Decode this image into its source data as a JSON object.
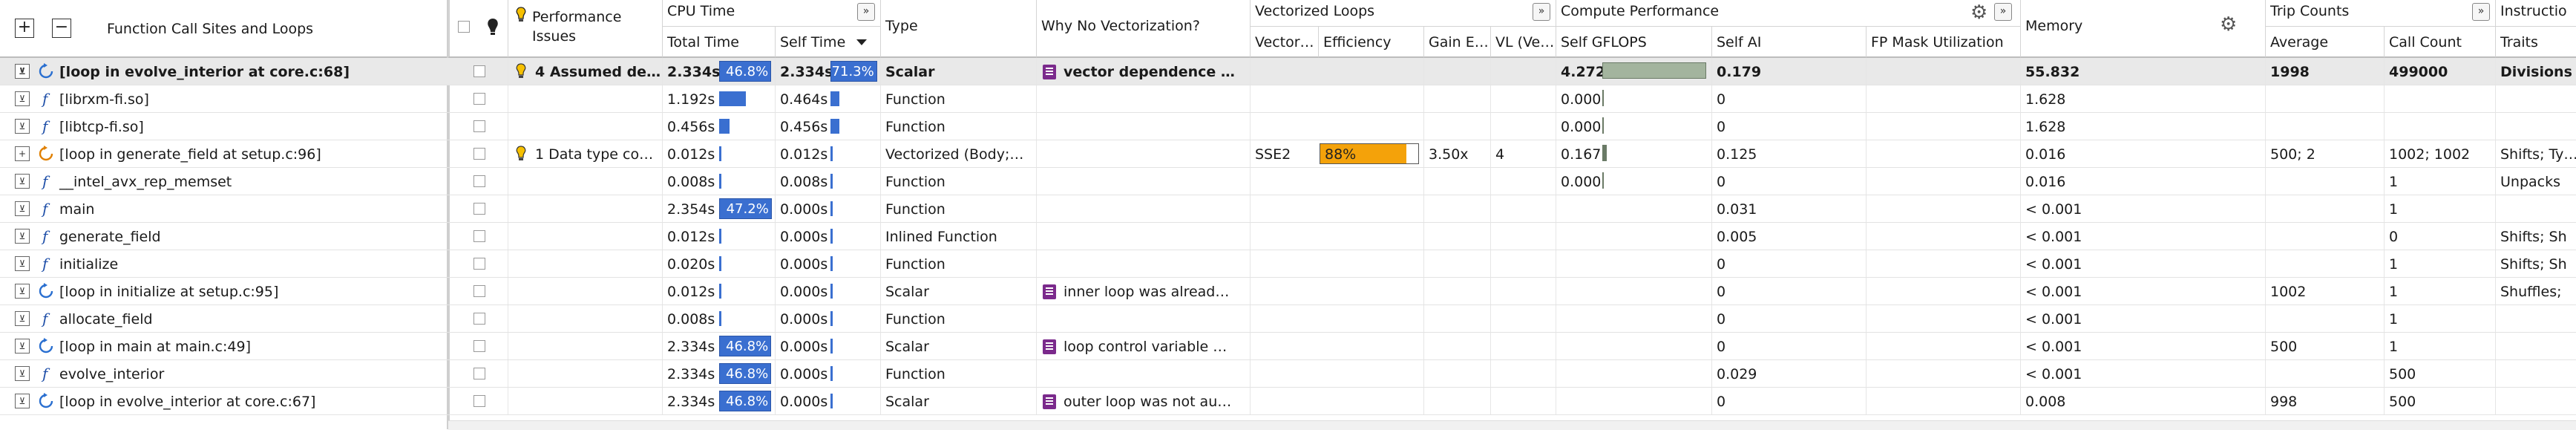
{
  "toolbar": {
    "expand_all": "+",
    "collapse_all": "−"
  },
  "headers": {
    "function_call_sites": "Function Call Sites and Loops",
    "performance_issues": "Performance Issues",
    "cpu_time": "CPU Time",
    "total_time": "Total Time",
    "self_time": "Self Time",
    "type": "Type",
    "why_no_vectorization": "Why No Vectorization?",
    "vectorized_loops": "Vectorized Loops",
    "vector_isa": "Vector…",
    "efficiency": "Efficiency",
    "gain_estimate": "Gain E…",
    "vl": "VL (Ve…",
    "compute_performance": "Compute Performance",
    "self_gflops": "Self GFLOPS",
    "self_ai": "Self AI",
    "fp_mask": "FP Mask Utilization",
    "memory": "Memory",
    "trip_counts": "Trip Counts",
    "average": "Average",
    "call_count": "Call Count",
    "instruction_set": "Instructio",
    "traits": "Traits"
  },
  "rows": [
    {
      "kind": "loop",
      "expander": "⊻",
      "name": "[loop in evolve_interior at core.c:68]",
      "bulb": true,
      "issues": "4 Assumed de…",
      "total": "2.334s",
      "total_pct": "46.8%",
      "total_bar": 0.468,
      "self": "2.334s",
      "self_pct": "71.3%",
      "self_bar": 0.713,
      "type": "Scalar",
      "why": "vector dependence …",
      "why_icon": true,
      "isa": "",
      "eff": "",
      "eff_val": null,
      "gain": "",
      "vl": "",
      "gflops": "4.272",
      "gflops_bar": 1.0,
      "ai": "0.179",
      "fpmask": "",
      "memory": "55.832",
      "avg": "1998",
      "calls": "499000",
      "traits": "Divisions"
    },
    {
      "kind": "func",
      "expander": "⊻",
      "name": "[librxm-fi.so]",
      "bulb": false,
      "issues": "",
      "total": "1.192s",
      "total_pct": "",
      "total_bar": 0.239,
      "self": "0.464s",
      "self_pct": "",
      "self_bar": 0.142,
      "type": "Function",
      "why": "",
      "why_icon": false,
      "isa": "",
      "eff": "",
      "eff_val": null,
      "gain": "",
      "vl": "",
      "gflops": "0.000",
      "gflops_bar": 0.0,
      "ai": "0",
      "fpmask": "",
      "memory": "1.628",
      "avg": "",
      "calls": "",
      "traits": ""
    },
    {
      "kind": "func",
      "expander": "⊻",
      "name": "[libtcp-fi.so]",
      "bulb": false,
      "issues": "",
      "total": "0.456s",
      "total_pct": "",
      "total_bar": 0.091,
      "self": "0.456s",
      "self_pct": "",
      "self_bar": 0.139,
      "type": "Function",
      "why": "",
      "why_icon": false,
      "isa": "",
      "eff": "",
      "eff_val": null,
      "gain": "",
      "vl": "",
      "gflops": "0.000",
      "gflops_bar": 0.0,
      "ai": "0",
      "fpmask": "",
      "memory": "1.628",
      "avg": "",
      "calls": "",
      "traits": ""
    },
    {
      "kind": "loop-vec",
      "expander": "+",
      "name": "[loop in generate_field at setup.c:96]",
      "bulb": true,
      "issues": "1 Data type co…",
      "total": "0.012s",
      "total_pct": "",
      "total_bar": 0.002,
      "self": "0.012s",
      "self_pct": "",
      "self_bar": 0.004,
      "type": "Vectorized (Body;…",
      "why": "",
      "why_icon": false,
      "isa": "SSE2",
      "eff": "88%",
      "eff_val": 0.88,
      "gain": "3.50x",
      "vl": "4",
      "gflops": "0.167",
      "gflops_bar": 0.04,
      "ai": "0.125",
      "fpmask": "",
      "memory": "0.016",
      "avg": "500; 2",
      "calls": "1002; 1002",
      "traits": "Shifts; Ty…"
    },
    {
      "kind": "func",
      "expander": "⊻",
      "name": "__intel_avx_rep_memset",
      "bulb": false,
      "issues": "",
      "total": "0.008s",
      "total_pct": "",
      "total_bar": 0.002,
      "self": "0.008s",
      "self_pct": "",
      "self_bar": 0.002,
      "type": "Function",
      "why": "",
      "why_icon": false,
      "isa": "",
      "eff": "",
      "eff_val": null,
      "gain": "",
      "vl": "",
      "gflops": "0.000",
      "gflops_bar": 0.0,
      "ai": "0",
      "fpmask": "",
      "memory": "0.016",
      "avg": "",
      "calls": "1",
      "traits": "Unpacks"
    },
    {
      "kind": "func",
      "expander": "⊻",
      "name": "main",
      "bulb": false,
      "issues": "",
      "total": "2.354s",
      "total_pct": "47.2%",
      "total_bar": 0.472,
      "self": "0.000s",
      "self_pct": "",
      "self_bar": 0.0,
      "type": "Function",
      "why": "",
      "why_icon": false,
      "isa": "",
      "eff": "",
      "eff_val": null,
      "gain": "",
      "vl": "",
      "gflops": "",
      "gflops_bar": null,
      "ai": "0.031",
      "fpmask": "",
      "memory": "< 0.001",
      "avg": "",
      "calls": "1",
      "traits": ""
    },
    {
      "kind": "func",
      "expander": "⊻",
      "name": "generate_field",
      "bulb": false,
      "issues": "",
      "total": "0.012s",
      "total_pct": "",
      "total_bar": 0.002,
      "self": "0.000s",
      "self_pct": "",
      "self_bar": 0.0,
      "type": "Inlined Function",
      "why": "",
      "why_icon": false,
      "isa": "",
      "eff": "",
      "eff_val": null,
      "gain": "",
      "vl": "",
      "gflops": "",
      "gflops_bar": null,
      "ai": "0.005",
      "fpmask": "",
      "memory": "< 0.001",
      "avg": "",
      "calls": "0",
      "traits": "Shifts; Sh"
    },
    {
      "kind": "func",
      "expander": "⊻",
      "name": "initialize",
      "bulb": false,
      "issues": "",
      "total": "0.020s",
      "total_pct": "",
      "total_bar": 0.004,
      "self": "0.000s",
      "self_pct": "",
      "self_bar": 0.0,
      "type": "Function",
      "why": "",
      "why_icon": false,
      "isa": "",
      "eff": "",
      "eff_val": null,
      "gain": "",
      "vl": "",
      "gflops": "",
      "gflops_bar": null,
      "ai": "0",
      "fpmask": "",
      "memory": "< 0.001",
      "avg": "",
      "calls": "1",
      "traits": "Shifts; Sh"
    },
    {
      "kind": "loop",
      "expander": "⊻",
      "name": "[loop in initialize at setup.c:95]",
      "bulb": false,
      "issues": "",
      "total": "0.012s",
      "total_pct": "",
      "total_bar": 0.002,
      "self": "0.000s",
      "self_pct": "",
      "self_bar": 0.0,
      "type": "Scalar",
      "why": "inner loop was alread…",
      "why_icon": true,
      "isa": "",
      "eff": "",
      "eff_val": null,
      "gain": "",
      "vl": "",
      "gflops": "",
      "gflops_bar": null,
      "ai": "0",
      "fpmask": "",
      "memory": "< 0.001",
      "avg": "1002",
      "calls": "1",
      "traits": "Shuffles;"
    },
    {
      "kind": "func",
      "expander": "⊻",
      "name": "allocate_field",
      "bulb": false,
      "issues": "",
      "total": "0.008s",
      "total_pct": "",
      "total_bar": 0.002,
      "self": "0.000s",
      "self_pct": "",
      "self_bar": 0.0,
      "type": "Function",
      "why": "",
      "why_icon": false,
      "isa": "",
      "eff": "",
      "eff_val": null,
      "gain": "",
      "vl": "",
      "gflops": "",
      "gflops_bar": null,
      "ai": "0",
      "fpmask": "",
      "memory": "< 0.001",
      "avg": "",
      "calls": "1",
      "traits": ""
    },
    {
      "kind": "loop",
      "expander": "⊻",
      "name": "[loop in main at main.c:49]",
      "bulb": false,
      "issues": "",
      "total": "2.334s",
      "total_pct": "46.8%",
      "total_bar": 0.468,
      "self": "0.000s",
      "self_pct": "",
      "self_bar": 0.0,
      "type": "Scalar",
      "why": "loop control variable …",
      "why_icon": true,
      "isa": "",
      "eff": "",
      "eff_val": null,
      "gain": "",
      "vl": "",
      "gflops": "",
      "gflops_bar": null,
      "ai": "0",
      "fpmask": "",
      "memory": "< 0.001",
      "avg": "500",
      "calls": "1",
      "traits": ""
    },
    {
      "kind": "func",
      "expander": "⊻",
      "name": "evolve_interior",
      "bulb": false,
      "issues": "",
      "total": "2.334s",
      "total_pct": "46.8%",
      "total_bar": 0.468,
      "self": "0.000s",
      "self_pct": "",
      "self_bar": 0.0,
      "type": "Function",
      "why": "",
      "why_icon": false,
      "isa": "",
      "eff": "",
      "eff_val": null,
      "gain": "",
      "vl": "",
      "gflops": "",
      "gflops_bar": null,
      "ai": "0.029",
      "fpmask": "",
      "memory": "< 0.001",
      "avg": "",
      "calls": "500",
      "traits": ""
    },
    {
      "kind": "loop",
      "expander": "⊻",
      "name": "[loop in evolve_interior at core.c:67]",
      "bulb": false,
      "issues": "",
      "total": "2.334s",
      "total_pct": "46.8%",
      "total_bar": 0.468,
      "self": "0.000s",
      "self_pct": "",
      "self_bar": 0.0,
      "type": "Scalar",
      "why": "outer loop was not au…",
      "why_icon": true,
      "isa": "",
      "eff": "",
      "eff_val": null,
      "gain": "",
      "vl": "",
      "gflops": "",
      "gflops_bar": null,
      "ai": "0",
      "fpmask": "",
      "memory": "0.008",
      "avg": "998",
      "calls": "500",
      "traits": ""
    }
  ],
  "colors": {
    "cpu_bar": "#3a6fd0",
    "gflops_bar": "#a3b49e",
    "efficiency_bar": "#f4a20a",
    "why_icon": "#7b2a8c",
    "loop_icon": "#2a6fd0",
    "function_icon": "#1f4fa8",
    "selected_row": "#e9e9e9"
  },
  "icons": {
    "loop": "loop-icon",
    "vectorized_loop": "vectorized-loop-icon",
    "function": "function-icon",
    "bulb": "lightbulb-icon",
    "gear": "gear-icon",
    "expand_group": "double-chevron-right-icon",
    "sort": "sort-desc-icon",
    "why": "compiler-diagnostic-icon"
  }
}
